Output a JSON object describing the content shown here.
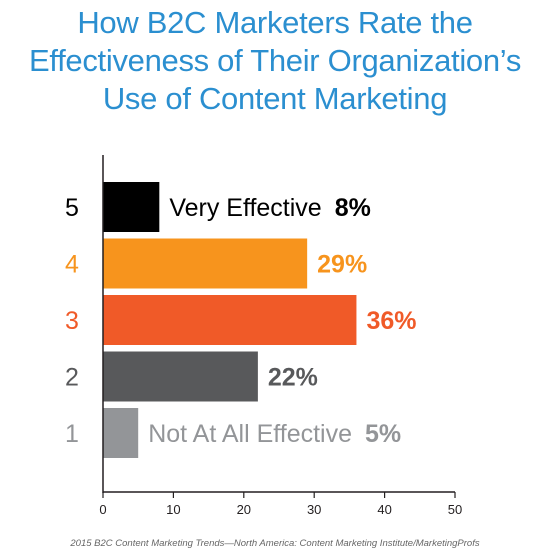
{
  "title_lines": [
    "How B2C Marketers Rate the",
    "Effectiveness of Their Organization’s",
    "Use of Content Marketing"
  ],
  "source": "2015 B2C Content Marketing Trends—North America: Content Marketing Institute/MarketingProfs",
  "chart_data": {
    "type": "bar",
    "orientation": "horizontal",
    "title": "How B2C Marketers Rate the Effectiveness of Their Organization’s Use of Content Marketing",
    "xlim": [
      0,
      50
    ],
    "xticks": [
      0,
      10,
      20,
      30,
      40,
      50
    ],
    "grid": false,
    "bars": [
      {
        "category": "5",
        "label": "Very Effective",
        "value": 8,
        "value_label": "8%",
        "color": "#000000",
        "text_color": "#000000"
      },
      {
        "category": "4",
        "label": "",
        "value": 29,
        "value_label": "29%",
        "color": "#f7941d",
        "text_color": "#f7941d"
      },
      {
        "category": "3",
        "label": "",
        "value": 36,
        "value_label": "36%",
        "color": "#f05a28",
        "text_color": "#f05a28"
      },
      {
        "category": "2",
        "label": "",
        "value": 22,
        "value_label": "22%",
        "color": "#58595b",
        "text_color": "#58595b"
      },
      {
        "category": "1",
        "label": "Not At All Effective",
        "value": 5,
        "value_label": "5%",
        "color": "#939598",
        "text_color": "#939598"
      }
    ]
  }
}
